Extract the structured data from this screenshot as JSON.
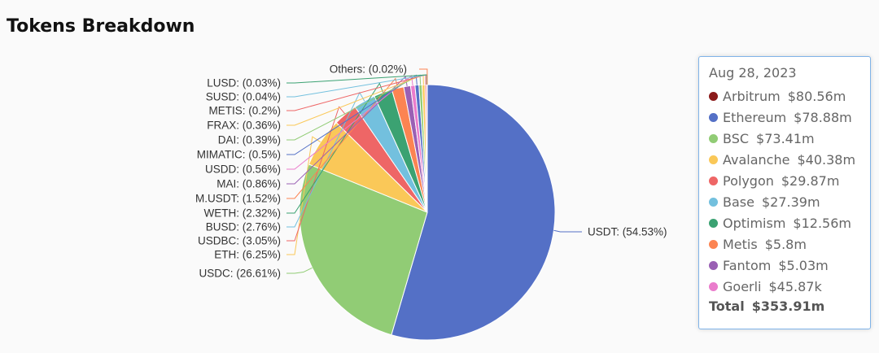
{
  "title": "Tokens Breakdown",
  "chart_data": {
    "type": "pie",
    "title": "Tokens Breakdown",
    "slices": [
      {
        "name": "USDT",
        "label": "USDT: (54.53%)",
        "value": 54.53,
        "color": "#5470c6"
      },
      {
        "name": "USDC",
        "label": "USDC: (26.61%)",
        "value": 26.61,
        "color": "#91cc75"
      },
      {
        "name": "ETH",
        "label": "ETH: (6.25%)",
        "value": 6.25,
        "color": "#fac858"
      },
      {
        "name": "USDBC",
        "label": "USDBC: (3.05%)",
        "value": 3.05,
        "color": "#ee6666"
      },
      {
        "name": "BUSD",
        "label": "BUSD: (2.76%)",
        "value": 2.76,
        "color": "#73c0de"
      },
      {
        "name": "WETH",
        "label": "WETH: (2.32%)",
        "value": 2.32,
        "color": "#3ba272"
      },
      {
        "name": "M.USDT",
        "label": "M.USDT: (1.52%)",
        "value": 1.52,
        "color": "#fc8452"
      },
      {
        "name": "MAI",
        "label": "MAI: (0.86%)",
        "value": 0.86,
        "color": "#9a60b4"
      },
      {
        "name": "USDD",
        "label": "USDD: (0.56%)",
        "value": 0.56,
        "color": "#ea7ccc"
      },
      {
        "name": "MIMATIC",
        "label": "MIMATIC: (0.5%)",
        "value": 0.5,
        "color": "#5470c6"
      },
      {
        "name": "DAI",
        "label": "DAI: (0.39%)",
        "value": 0.39,
        "color": "#91cc75"
      },
      {
        "name": "FRAX",
        "label": "FRAX: (0.36%)",
        "value": 0.36,
        "color": "#fac858"
      },
      {
        "name": "METIS",
        "label": "METIS: (0.2%)",
        "value": 0.2,
        "color": "#ee6666"
      },
      {
        "name": "SUSD",
        "label": "SUSD: (0.04%)",
        "value": 0.04,
        "color": "#73c0de"
      },
      {
        "name": "LUSD",
        "label": "LUSD: (0.03%)",
        "value": 0.03,
        "color": "#3ba272"
      },
      {
        "name": "Others",
        "label": "Others: (0.02%)",
        "value": 0.02,
        "color": "#fc8452"
      }
    ]
  },
  "tooltip": {
    "date": "Aug 28, 2023",
    "items": [
      {
        "name": "Arbitrum",
        "value": "$80.56m",
        "color": "#8b1a1a"
      },
      {
        "name": "Ethereum",
        "value": "$78.88m",
        "color": "#5470c6"
      },
      {
        "name": "BSC",
        "value": "$73.41m",
        "color": "#91cc75"
      },
      {
        "name": "Avalanche",
        "value": "$40.38m",
        "color": "#fac858"
      },
      {
        "name": "Polygon",
        "value": "$29.87m",
        "color": "#ee6666"
      },
      {
        "name": "Base",
        "value": "$27.39m",
        "color": "#73c0de"
      },
      {
        "name": "Optimism",
        "value": "$12.56m",
        "color": "#3ba272"
      },
      {
        "name": "Metis",
        "value": "$5.8m",
        "color": "#fc8452"
      },
      {
        "name": "Fantom",
        "value": "$5.03m",
        "color": "#9a60b4"
      },
      {
        "name": "Goerli",
        "value": "$45.87k",
        "color": "#ea7ccc"
      }
    ],
    "total_label": "Total",
    "total_value": "$353.91m"
  }
}
